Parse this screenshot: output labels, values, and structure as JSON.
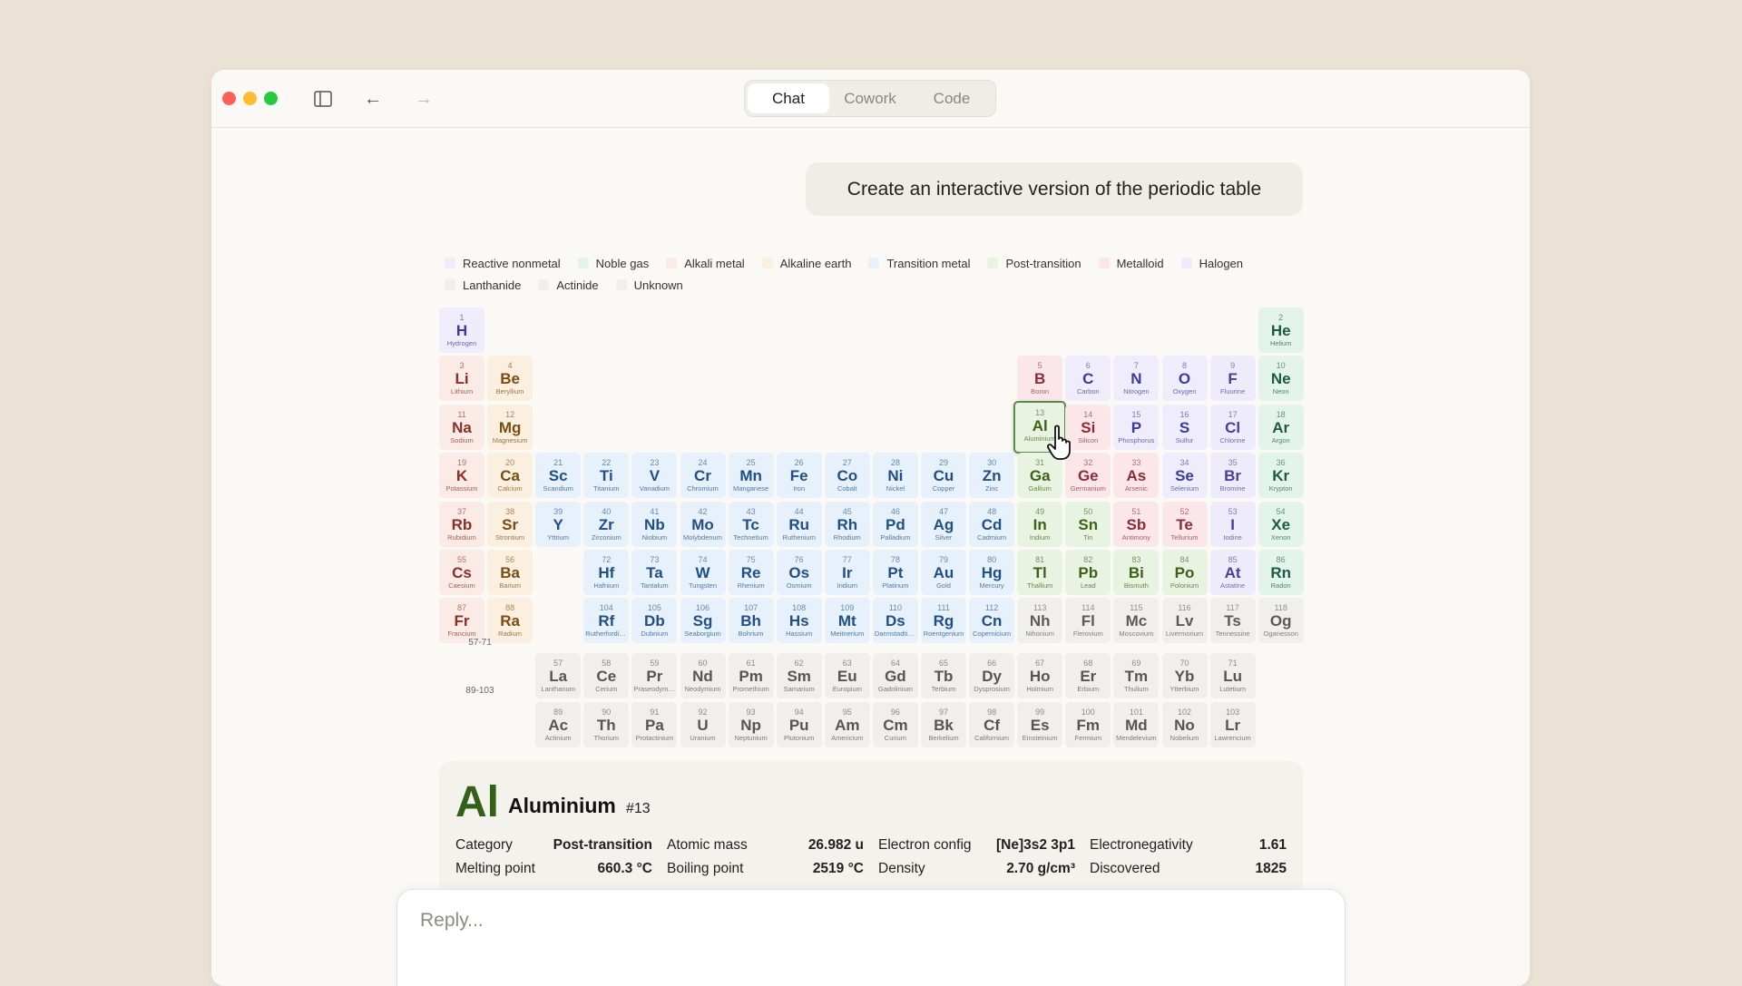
{
  "window": {
    "tabs": [
      {
        "label": "Chat",
        "active": true
      },
      {
        "label": "Cowork",
        "active": false
      },
      {
        "label": "Code",
        "active": false
      }
    ],
    "icons": [
      "sidebar-toggle-icon",
      "back-arrow-icon",
      "forward-arrow-icon"
    ]
  },
  "message": {
    "user": "Create an interactive version of the periodic table"
  },
  "legend": [
    {
      "key": "rn",
      "label": "Reactive nonmetal",
      "bg": "#efedfc",
      "fg": "#3b3a9a"
    },
    {
      "key": "ng",
      "label": "Noble gas",
      "bg": "#e2f4ec",
      "fg": "#1f5b43"
    },
    {
      "key": "am",
      "label": "Alkali metal",
      "bg": "#fbebe6",
      "fg": "#8b2e26"
    },
    {
      "key": "ae",
      "label": "Alkaline earth",
      "bg": "#fbf0e0",
      "fg": "#7b4b12"
    },
    {
      "key": "tm",
      "label": "Transition metal",
      "bg": "#e7f1fb",
      "fg": "#1f4f85"
    },
    {
      "key": "pt",
      "label": "Post-transition",
      "bg": "#e9f3e1",
      "fg": "#3a6318"
    },
    {
      "key": "ml",
      "label": "Metalloid",
      "bg": "#fbe7ea",
      "fg": "#8c2c38"
    },
    {
      "key": "ha",
      "label": "Halogen",
      "bg": "#eeecfb",
      "fg": "#45409e"
    },
    {
      "key": "la",
      "label": "Lanthanide",
      "bg": "#f0efeb",
      "fg": "#555555"
    },
    {
      "key": "ac",
      "label": "Actinide",
      "bg": "#f0efeb",
      "fg": "#555555"
    },
    {
      "key": "un",
      "label": "Unknown",
      "bg": "#f0efeb",
      "fg": "#5a5a5a"
    }
  ],
  "placeholders": {
    "lanthanides": "57-71",
    "actinides": "89-103"
  },
  "selected": 13,
  "elements": [
    [
      "H",
      "Hydrogen",
      "rn"
    ],
    [
      "He",
      "Helium",
      "ng"
    ],
    [
      "Li",
      "Lithium",
      "am"
    ],
    [
      "Be",
      "Beryllium",
      "ae"
    ],
    [
      "B",
      "Boron",
      "ml"
    ],
    [
      "C",
      "Carbon",
      "rn"
    ],
    [
      "N",
      "Nitrogen",
      "rn"
    ],
    [
      "O",
      "Oxygen",
      "rn"
    ],
    [
      "F",
      "Fluorine",
      "ha"
    ],
    [
      "Ne",
      "Neon",
      "ng"
    ],
    [
      "Na",
      "Sodium",
      "am"
    ],
    [
      "Mg",
      "Magnesium",
      "ae"
    ],
    [
      "Al",
      "Aluminium",
      "pt"
    ],
    [
      "Si",
      "Silicon",
      "ml"
    ],
    [
      "P",
      "Phosphorus",
      "rn"
    ],
    [
      "S",
      "Sulfur",
      "rn"
    ],
    [
      "Cl",
      "Chlorine",
      "ha"
    ],
    [
      "Ar",
      "Argon",
      "ng"
    ],
    [
      "K",
      "Potassium",
      "am"
    ],
    [
      "Ca",
      "Calcium",
      "ae"
    ],
    [
      "Sc",
      "Scandium",
      "tm"
    ],
    [
      "Ti",
      "Titanium",
      "tm"
    ],
    [
      "V",
      "Vanadium",
      "tm"
    ],
    [
      "Cr",
      "Chromium",
      "tm"
    ],
    [
      "Mn",
      "Manganese",
      "tm"
    ],
    [
      "Fe",
      "Iron",
      "tm"
    ],
    [
      "Co",
      "Cobalt",
      "tm"
    ],
    [
      "Ni",
      "Nickel",
      "tm"
    ],
    [
      "Cu",
      "Copper",
      "tm"
    ],
    [
      "Zn",
      "Zinc",
      "tm"
    ],
    [
      "Ga",
      "Gallium",
      "pt"
    ],
    [
      "Ge",
      "Germanium",
      "ml"
    ],
    [
      "As",
      "Arsenic",
      "ml"
    ],
    [
      "Se",
      "Selenium",
      "rn"
    ],
    [
      "Br",
      "Bromine",
      "ha"
    ],
    [
      "Kr",
      "Krypton",
      "ng"
    ],
    [
      "Rb",
      "Rubidium",
      "am"
    ],
    [
      "Sr",
      "Strontium",
      "ae"
    ],
    [
      "Y",
      "Yttrium",
      "tm"
    ],
    [
      "Zr",
      "Zirconium",
      "tm"
    ],
    [
      "Nb",
      "Niobium",
      "tm"
    ],
    [
      "Mo",
      "Molybdenum",
      "tm"
    ],
    [
      "Tc",
      "Technetium",
      "tm"
    ],
    [
      "Ru",
      "Ruthenium",
      "tm"
    ],
    [
      "Rh",
      "Rhodium",
      "tm"
    ],
    [
      "Pd",
      "Palladium",
      "tm"
    ],
    [
      "Ag",
      "Silver",
      "tm"
    ],
    [
      "Cd",
      "Cadmium",
      "tm"
    ],
    [
      "In",
      "Indium",
      "pt"
    ],
    [
      "Sn",
      "Tin",
      "pt"
    ],
    [
      "Sb",
      "Antimony",
      "ml"
    ],
    [
      "Te",
      "Tellurium",
      "ml"
    ],
    [
      "I",
      "Iodine",
      "ha"
    ],
    [
      "Xe",
      "Xenon",
      "ng"
    ],
    [
      "Cs",
      "Caesium",
      "am"
    ],
    [
      "Ba",
      "Barium",
      "ae"
    ],
    [
      "La",
      "Lanthanum",
      "la"
    ],
    [
      "Ce",
      "Cerium",
      "la"
    ],
    [
      "Pr",
      "Praseodymium",
      "la"
    ],
    [
      "Nd",
      "Neodymium",
      "la"
    ],
    [
      "Pm",
      "Promethium",
      "la"
    ],
    [
      "Sm",
      "Samarium",
      "la"
    ],
    [
      "Eu",
      "Europium",
      "la"
    ],
    [
      "Gd",
      "Gadolinium",
      "la"
    ],
    [
      "Tb",
      "Terbium",
      "la"
    ],
    [
      "Dy",
      "Dysprosium",
      "la"
    ],
    [
      "Ho",
      "Holmium",
      "la"
    ],
    [
      "Er",
      "Erbium",
      "la"
    ],
    [
      "Tm",
      "Thulium",
      "la"
    ],
    [
      "Yb",
      "Ytterbium",
      "la"
    ],
    [
      "Lu",
      "Lutetium",
      "la"
    ],
    [
      "Hf",
      "Hafnium",
      "tm"
    ],
    [
      "Ta",
      "Tantalum",
      "tm"
    ],
    [
      "W",
      "Tungsten",
      "tm"
    ],
    [
      "Re",
      "Rhenium",
      "tm"
    ],
    [
      "Os",
      "Osmium",
      "tm"
    ],
    [
      "Ir",
      "Iridium",
      "tm"
    ],
    [
      "Pt",
      "Platinum",
      "tm"
    ],
    [
      "Au",
      "Gold",
      "tm"
    ],
    [
      "Hg",
      "Mercury",
      "tm"
    ],
    [
      "Tl",
      "Thallium",
      "pt"
    ],
    [
      "Pb",
      "Lead",
      "pt"
    ],
    [
      "Bi",
      "Bismuth",
      "pt"
    ],
    [
      "Po",
      "Polonium",
      "pt"
    ],
    [
      "At",
      "Astatine",
      "ha"
    ],
    [
      "Rn",
      "Radon",
      "ng"
    ],
    [
      "Fr",
      "Francium",
      "am"
    ],
    [
      "Ra",
      "Radium",
      "ae"
    ],
    [
      "Ac",
      "Actinium",
      "ac"
    ],
    [
      "Th",
      "Thorium",
      "ac"
    ],
    [
      "Pa",
      "Protactinium",
      "ac"
    ],
    [
      "U",
      "Uranium",
      "ac"
    ],
    [
      "Np",
      "Neptunium",
      "ac"
    ],
    [
      "Pu",
      "Plutonium",
      "ac"
    ],
    [
      "Am",
      "Americium",
      "ac"
    ],
    [
      "Cm",
      "Curium",
      "ac"
    ],
    [
      "Bk",
      "Berkelium",
      "ac"
    ],
    [
      "Cf",
      "Californium",
      "ac"
    ],
    [
      "Es",
      "Einsteinium",
      "ac"
    ],
    [
      "Fm",
      "Fermium",
      "ac"
    ],
    [
      "Md",
      "Mendelevium",
      "ac"
    ],
    [
      "No",
      "Nobelium",
      "ac"
    ],
    [
      "Lr",
      "Lawrencium",
      "ac"
    ],
    [
      "Rf",
      "Rutherfordium",
      "tm"
    ],
    [
      "Db",
      "Dubnium",
      "tm"
    ],
    [
      "Sg",
      "Seaborgium",
      "tm"
    ],
    [
      "Bh",
      "Bohrium",
      "tm"
    ],
    [
      "Hs",
      "Hassium",
      "tm"
    ],
    [
      "Mt",
      "Meitnerium",
      "tm"
    ],
    [
      "Ds",
      "Darmstadtium",
      "tm"
    ],
    [
      "Rg",
      "Roentgenium",
      "tm"
    ],
    [
      "Cn",
      "Copernicium",
      "tm"
    ],
    [
      "Nh",
      "Nihonium",
      "un"
    ],
    [
      "Fl",
      "Flerovium",
      "un"
    ],
    [
      "Mc",
      "Moscovium",
      "un"
    ],
    [
      "Lv",
      "Livermorium",
      "un"
    ],
    [
      "Ts",
      "Tennessine",
      "un"
    ],
    [
      "Og",
      "Oganesson",
      "un"
    ]
  ],
  "detail": {
    "symbol": "Al",
    "name": "Aluminium",
    "number": "#13",
    "props": [
      {
        "label": "Category",
        "value": "Post-transition"
      },
      {
        "label": "Atomic mass",
        "value": "26.982 u"
      },
      {
        "label": "Electron config",
        "value": "[Ne]3s2 3p1"
      },
      {
        "label": "Electronegativity",
        "value": "1.61"
      },
      {
        "label": "Melting point",
        "value": "660.3 °C"
      },
      {
        "label": "Boiling point",
        "value": "2519 °C"
      },
      {
        "label": "Density",
        "value": "2.70 g/cm³"
      },
      {
        "label": "Discovered",
        "value": "1825"
      }
    ]
  },
  "composer": {
    "placeholder": "Reply..."
  }
}
